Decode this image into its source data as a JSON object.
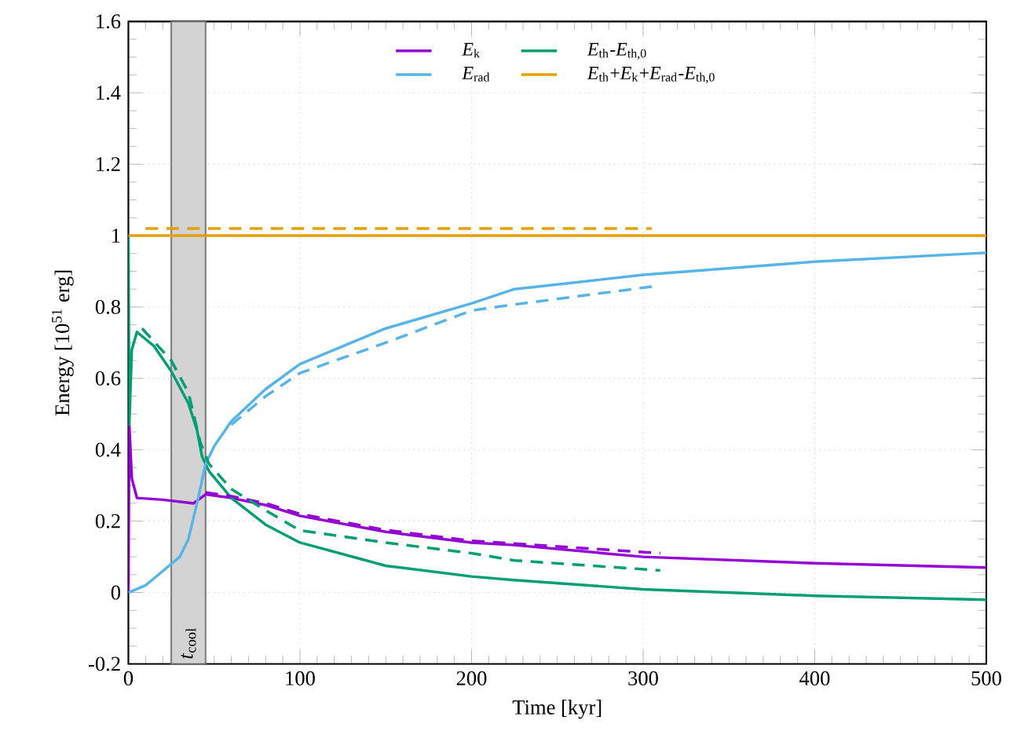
{
  "chart_data": {
    "type": "line",
    "xlabel": "Time [kyr]",
    "ylabel": "Energy [10$^{51}$ erg]",
    "xlim": [
      0,
      500
    ],
    "ylim": [
      -0.2,
      1.6
    ],
    "xticks": [
      0,
      100,
      200,
      300,
      400,
      500
    ],
    "yticks": [
      -0.2,
      0,
      0.2,
      0.4,
      0.6,
      0.8,
      1,
      1.2,
      1.4,
      1.6
    ],
    "grid": true,
    "legend": "top",
    "bands": [
      {
        "axis": "x",
        "from": 25,
        "to": 45,
        "label": "*t*$_{cool}$",
        "color": "#d3d3d3"
      }
    ],
    "series": [
      {
        "name": "*E*$_{k}$",
        "color": "#9400d3",
        "line_style": "solid",
        "x": [
          0,
          0.5,
          2,
          5,
          20,
          38,
          45,
          60,
          80,
          100,
          150,
          200,
          225,
          300,
          400,
          500
        ],
        "values": [
          0,
          0.47,
          0.32,
          0.265,
          0.26,
          0.25,
          0.275,
          0.265,
          0.245,
          0.215,
          0.17,
          0.14,
          0.133,
          0.1,
          0.082,
          0.07
        ]
      },
      {
        "name": "*E*$_{th}$-*E*$_{th,0}$",
        "color": "#009e73",
        "line_style": "solid",
        "x": [
          0,
          0.5,
          2,
          5,
          15,
          25,
          35,
          40,
          43,
          47,
          60,
          80,
          100,
          150,
          200,
          225,
          300,
          400,
          500
        ],
        "values": [
          1,
          0.47,
          0.68,
          0.73,
          0.69,
          0.62,
          0.53,
          0.455,
          0.38,
          0.34,
          0.265,
          0.19,
          0.14,
          0.075,
          0.045,
          0.035,
          0.009,
          -0.009,
          -0.02
        ]
      },
      {
        "name": "*E*$_{rad}$",
        "color": "#56b4e9",
        "line_style": "solid",
        "x": [
          0,
          10,
          20,
          30,
          35,
          40,
          45,
          50,
          60,
          80,
          100,
          150,
          200,
          225,
          300,
          400,
          500
        ],
        "values": [
          0,
          0.02,
          0.06,
          0.1,
          0.15,
          0.25,
          0.36,
          0.41,
          0.48,
          0.57,
          0.64,
          0.74,
          0.81,
          0.85,
          0.89,
          0.927,
          0.952
        ]
      },
      {
        "name": "*E*$_{th}$+*E*$_{k}$+*E*$_{rad}$-*E*$_{th,0}$",
        "color": "#e69f00",
        "line_style": "solid",
        "x": [
          0,
          100,
          200,
          300,
          400,
          500
        ],
        "values": [
          1,
          1,
          1,
          1,
          1,
          1
        ]
      },
      {
        "color": "#9400d3",
        "line_style": "dashed",
        "x": [
          45,
          60,
          80,
          100,
          150,
          200,
          225,
          310
        ],
        "values": [
          0.28,
          0.27,
          0.25,
          0.22,
          0.175,
          0.145,
          0.137,
          0.11
        ]
      },
      {
        "color": "#009e73",
        "line_style": "dashed",
        "x": [
          8,
          25,
          35,
          42,
          47,
          60,
          80,
          100,
          150,
          200,
          225,
          310
        ],
        "values": [
          0.74,
          0.65,
          0.56,
          0.42,
          0.36,
          0.29,
          0.23,
          0.174,
          0.14,
          0.11,
          0.09,
          0.062
        ]
      },
      {
        "color": "#56b4e9",
        "line_style": "dashed",
        "x": [
          60,
          80,
          100,
          150,
          200,
          225,
          305
        ],
        "values": [
          0.47,
          0.55,
          0.615,
          0.7,
          0.79,
          0.807,
          0.857
        ]
      },
      {
        "color": "#e69f00",
        "line_style": "dashed",
        "x": [
          10,
          100,
          200,
          305
        ],
        "values": [
          1.02,
          1.02,
          1.02,
          1.02
        ]
      }
    ]
  }
}
